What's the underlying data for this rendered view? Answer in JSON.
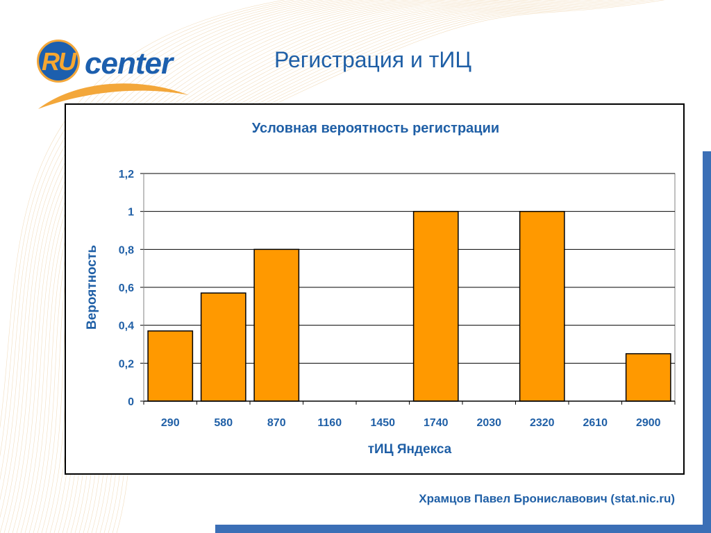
{
  "slide": {
    "title": "Регистрация и тИЦ",
    "footer": "Храмцов Павел Брониславович (stat.nic.ru)"
  },
  "logo": {
    "ru_text": "RU",
    "center_text": "center"
  },
  "colors": {
    "bar_fill": "#FF9900",
    "bar_stroke": "#000000",
    "chart_text": "#1f5fa6",
    "accent_blue": "#3b6fb6"
  },
  "chart_data": {
    "type": "bar",
    "title": "Условная вероятность регистрации",
    "xlabel": "тИЦ Яндекса",
    "ylabel": "Вероятность",
    "categories": [
      "290",
      "580",
      "870",
      "1160",
      "1450",
      "1740",
      "2030",
      "2320",
      "2610",
      "2900"
    ],
    "values": [
      0.37,
      0.57,
      0.8,
      0,
      0,
      1,
      0,
      1,
      0,
      0.25
    ],
    "ylim": [
      0,
      1.2
    ],
    "yticks": [
      "0",
      "0,2",
      "0,4",
      "0,6",
      "0,8",
      "1",
      "1,2"
    ],
    "grid": true,
    "legend": "none"
  }
}
